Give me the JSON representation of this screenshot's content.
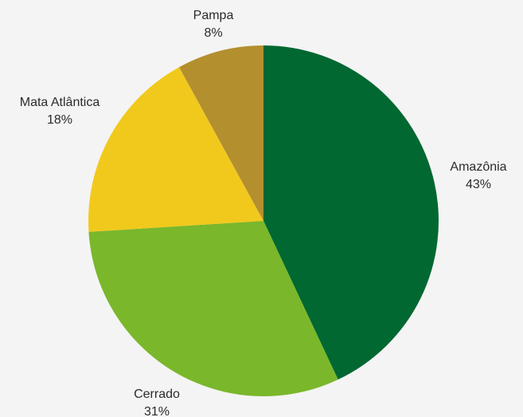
{
  "chart_data": {
    "type": "pie",
    "title": "",
    "start": "top",
    "direction": "clockwise",
    "slices": [
      {
        "label": "Amazônia",
        "value": 43,
        "value_label": "43%",
        "color": "#006830"
      },
      {
        "label": "Cerrado",
        "value": 31,
        "value_label": "31%",
        "color": "#7ab72b"
      },
      {
        "label": "Mata Atlântica",
        "value": 18,
        "value_label": "18%",
        "color": "#f1c91c"
      },
      {
        "label": "Pampa",
        "value": 8,
        "value_label": "8%",
        "color": "#b38f2e"
      }
    ]
  }
}
